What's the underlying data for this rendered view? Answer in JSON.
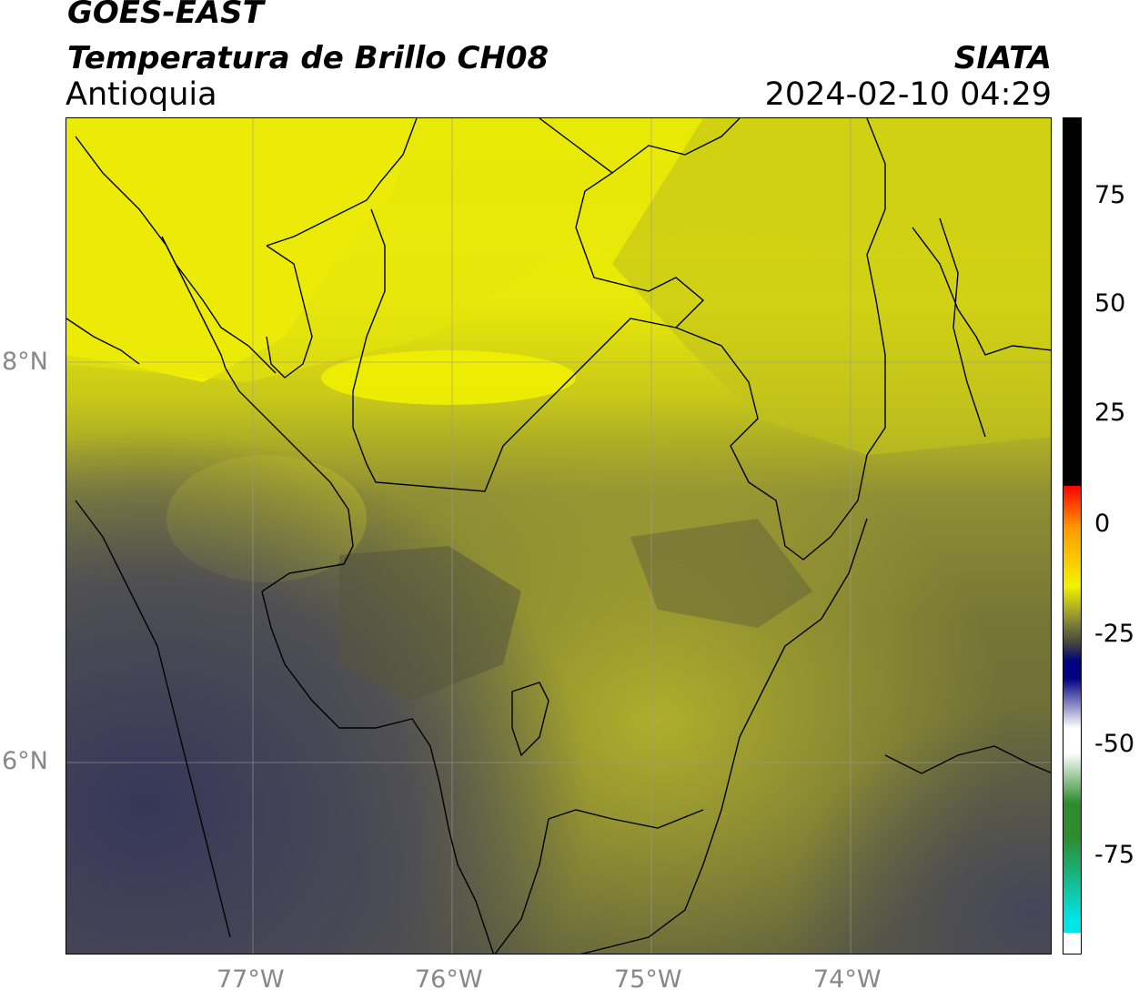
{
  "header": {
    "satellite": "GOES-EAST",
    "product": "Temperatura de Brillo CH08",
    "region": "Antioquia",
    "agency": "SIATA",
    "datetime": "2024-02-10 04:29"
  },
  "map": {
    "latitude_labels": [
      "8°N",
      "6°N"
    ],
    "longitude_labels": [
      "77°W",
      "76°W",
      "75°W",
      "74°W"
    ],
    "gridlines": true
  },
  "colorbar": {
    "tick_labels": [
      "75",
      "50",
      "25",
      "0",
      "-25",
      "-50",
      "-75"
    ],
    "colors": {
      "top": "#000000",
      "red": "#ff0000",
      "orange": "#ff9900",
      "yellow": "#f2f200",
      "olive": "#8c8c33",
      "dark_gray": "#404040",
      "navy": "#000080",
      "white": "#ffffff",
      "green": "#2e8b2e",
      "cyan": "#00e5e5"
    }
  }
}
